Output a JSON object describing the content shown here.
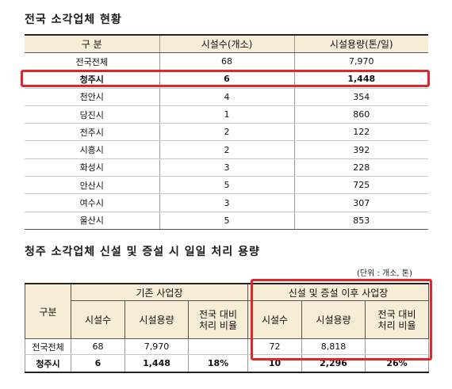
{
  "table1": {
    "title": "전국 소각업체 현황",
    "headers": [
      "구 분",
      "시설수(개소)",
      "시설용량(톤/일)"
    ],
    "rows": [
      {
        "name": "전국전체",
        "count": "68",
        "capacity": "7,970"
      },
      {
        "name": "청주시",
        "count": "6",
        "capacity": "1,448"
      },
      {
        "name": "천안시",
        "count": "4",
        "capacity": "354"
      },
      {
        "name": "당진시",
        "count": "1",
        "capacity": "860"
      },
      {
        "name": "전주시",
        "count": "2",
        "capacity": "122"
      },
      {
        "name": "시흥시",
        "count": "2",
        "capacity": "392"
      },
      {
        "name": "화성시",
        "count": "3",
        "capacity": "228"
      },
      {
        "name": "안산시",
        "count": "5",
        "capacity": "725"
      },
      {
        "name": "여수시",
        "count": "3",
        "capacity": "307"
      },
      {
        "name": "울산시",
        "count": "5",
        "capacity": "853"
      }
    ]
  },
  "table2": {
    "title": "청주 소각업체 신설 및 증설 시 일일 처리 용량",
    "unit": "(단위 : 개소, 톤)",
    "header_group": "구분",
    "group_existing": "기존 사업장",
    "group_after": "신설 및 증설 이후 사업장",
    "col_count": "시설수",
    "col_capacity": "시설용량",
    "col_ratio_line1": "전국 대비",
    "col_ratio_line2": "처리 비율",
    "rows": [
      {
        "name": "전국전체",
        "e_count": "68",
        "e_capacity": "7,970",
        "e_ratio": "",
        "a_count": "72",
        "a_capacity": "8,818",
        "a_ratio": ""
      },
      {
        "name": "청주시",
        "e_count": "6",
        "e_capacity": "1,448",
        "e_ratio": "18%",
        "a_count": "10",
        "a_capacity": "2,296",
        "a_ratio": "26%"
      }
    ]
  },
  "highlight_color": "#e0262b"
}
